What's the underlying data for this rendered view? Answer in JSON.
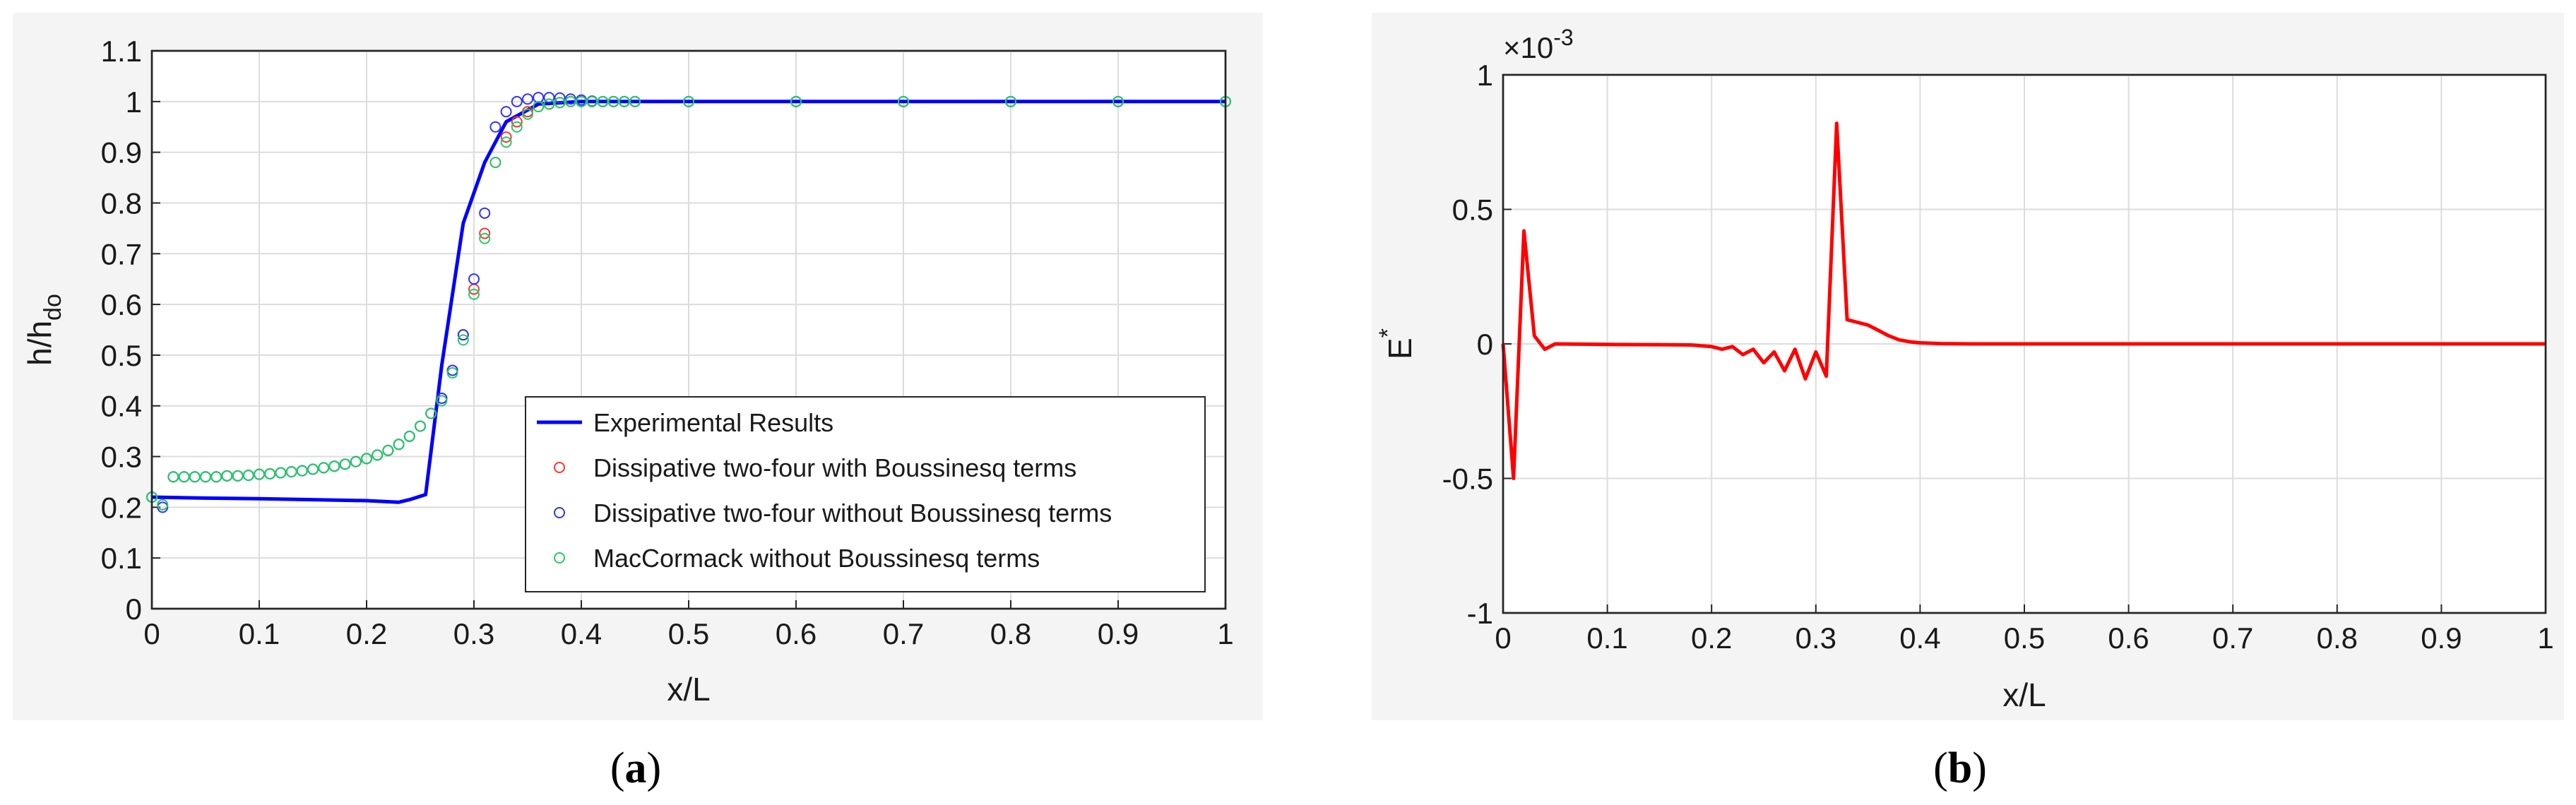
{
  "chart_data": [
    {
      "type": "line",
      "panel_label": "a",
      "xlabel": "x/L",
      "ylabel": "h/h",
      "ylabel_sub": "do",
      "xlim": [
        0,
        1
      ],
      "ylim": [
        0,
        1.1
      ],
      "x_ticks": [
        "0",
        "0.1",
        "0.2",
        "0.3",
        "0.4",
        "0.5",
        "0.6",
        "0.7",
        "0.8",
        "0.9",
        "1"
      ],
      "y_ticks": [
        "0",
        "0.1",
        "0.2",
        "0.3",
        "0.4",
        "0.5",
        "0.6",
        "0.7",
        "0.8",
        "0.9",
        "1",
        "1.1"
      ],
      "grid": true,
      "legend_position": "lower-right",
      "series": [
        {
          "name": "Experimental Results",
          "style": "line",
          "color": "#0000ff",
          "x": [
            0,
            0.05,
            0.1,
            0.15,
            0.2,
            0.23,
            0.24,
            0.255,
            0.27,
            0.29,
            0.31,
            0.33,
            0.36,
            0.4,
            0.45,
            0.5,
            0.6,
            0.7,
            0.8,
            0.9,
            1.0
          ],
          "y": [
            0.22,
            0.218,
            0.217,
            0.215,
            0.213,
            0.21,
            0.215,
            0.225,
            0.48,
            0.76,
            0.88,
            0.96,
            0.995,
            1.0,
            1.0,
            1.0,
            1.0,
            1.0,
            1.0,
            1.0,
            1.0
          ]
        },
        {
          "name": "Dissipative two-four with Boussinesq terms",
          "style": "marker",
          "color": "#ff3333",
          "x": [
            0.0,
            0.01,
            0.02,
            0.03,
            0.04,
            0.05,
            0.06,
            0.07,
            0.08,
            0.09,
            0.1,
            0.11,
            0.12,
            0.13,
            0.14,
            0.15,
            0.16,
            0.17,
            0.18,
            0.19,
            0.2,
            0.21,
            0.22,
            0.23,
            0.24,
            0.25,
            0.26,
            0.27,
            0.28,
            0.29,
            0.3,
            0.31,
            0.32,
            0.33,
            0.34,
            0.35,
            0.36,
            0.37,
            0.38,
            0.39,
            0.4,
            0.41,
            0.42,
            0.43,
            0.44,
            0.45,
            0.5,
            0.6,
            0.7,
            0.8,
            0.9,
            1.0
          ],
          "y": [
            0.22,
            0.205,
            0.26,
            0.26,
            0.26,
            0.26,
            0.26,
            0.262,
            0.262,
            0.263,
            0.265,
            0.266,
            0.268,
            0.27,
            0.272,
            0.275,
            0.278,
            0.281,
            0.285,
            0.29,
            0.296,
            0.303,
            0.312,
            0.324,
            0.34,
            0.36,
            0.385,
            0.415,
            0.47,
            0.54,
            0.63,
            0.74,
            0.88,
            0.93,
            0.96,
            0.98,
            0.99,
            0.995,
            0.998,
            1.0,
            1.0,
            1.0,
            1.0,
            1.0,
            1.0,
            1.0,
            1.0,
            1.0,
            1.0,
            1.0,
            1.0,
            1.0
          ]
        },
        {
          "name": "Dissipative two-four without Boussinesq terms",
          "style": "marker",
          "color": "#3333ff",
          "x": [
            0.0,
            0.01,
            0.02,
            0.03,
            0.04,
            0.05,
            0.06,
            0.07,
            0.08,
            0.09,
            0.1,
            0.11,
            0.12,
            0.13,
            0.14,
            0.15,
            0.16,
            0.17,
            0.18,
            0.19,
            0.2,
            0.21,
            0.22,
            0.23,
            0.24,
            0.25,
            0.26,
            0.27,
            0.28,
            0.29,
            0.3,
            0.31,
            0.32,
            0.33,
            0.34,
            0.35,
            0.36,
            0.37,
            0.38,
            0.39,
            0.4,
            0.41,
            0.42,
            0.43,
            0.44,
            0.45,
            0.5,
            0.6,
            0.7,
            0.8,
            0.9,
            1.0
          ],
          "y": [
            0.22,
            0.2,
            0.26,
            0.26,
            0.26,
            0.26,
            0.26,
            0.262,
            0.262,
            0.263,
            0.265,
            0.266,
            0.268,
            0.27,
            0.272,
            0.275,
            0.278,
            0.281,
            0.285,
            0.29,
            0.296,
            0.303,
            0.312,
            0.324,
            0.34,
            0.36,
            0.385,
            0.415,
            0.47,
            0.54,
            0.65,
            0.78,
            0.95,
            0.98,
            1.0,
            1.005,
            1.008,
            1.008,
            1.007,
            1.005,
            1.003,
            1.001,
            1.0,
            1.0,
            1.0,
            1.0,
            1.0,
            1.0,
            1.0,
            1.0,
            1.0,
            1.0
          ]
        },
        {
          "name": "MacCormack without Boussinesq terms",
          "style": "marker",
          "color": "#22cc66",
          "x": [
            0.0,
            0.01,
            0.02,
            0.03,
            0.04,
            0.05,
            0.06,
            0.07,
            0.08,
            0.09,
            0.1,
            0.11,
            0.12,
            0.13,
            0.14,
            0.15,
            0.16,
            0.17,
            0.18,
            0.19,
            0.2,
            0.21,
            0.22,
            0.23,
            0.24,
            0.25,
            0.26,
            0.27,
            0.28,
            0.29,
            0.3,
            0.31,
            0.32,
            0.33,
            0.34,
            0.35,
            0.36,
            0.37,
            0.38,
            0.39,
            0.4,
            0.41,
            0.42,
            0.43,
            0.44,
            0.45,
            0.5,
            0.6,
            0.7,
            0.8,
            0.9,
            1.0
          ],
          "y": [
            0.22,
            0.205,
            0.26,
            0.26,
            0.26,
            0.26,
            0.26,
            0.262,
            0.262,
            0.263,
            0.265,
            0.266,
            0.268,
            0.27,
            0.272,
            0.275,
            0.278,
            0.281,
            0.285,
            0.29,
            0.296,
            0.303,
            0.312,
            0.324,
            0.34,
            0.36,
            0.385,
            0.41,
            0.465,
            0.53,
            0.62,
            0.73,
            0.88,
            0.92,
            0.95,
            0.975,
            0.99,
            0.995,
            0.998,
            1.0,
            1.0,
            1.0,
            1.0,
            1.0,
            1.0,
            1.0,
            1.0,
            1.0,
            1.0,
            1.0,
            1.0,
            1.0
          ]
        }
      ]
    },
    {
      "type": "line",
      "panel_label": "b",
      "xlabel": "x/L",
      "ylabel": "E",
      "ylabel_sup": "*",
      "scale_label": "×10",
      "scale_exp": "-3",
      "xlim": [
        0,
        1
      ],
      "ylim": [
        -1,
        1
      ],
      "x_ticks": [
        "0",
        "0.1",
        "0.2",
        "0.3",
        "0.4",
        "0.5",
        "0.6",
        "0.7",
        "0.8",
        "0.9",
        "1"
      ],
      "y_ticks": [
        "-1",
        "-0.5",
        "0",
        "0.5",
        "1"
      ],
      "grid": true,
      "series": [
        {
          "style": "line",
          "color": "#ff0000",
          "x": [
            0,
            0.01,
            0.02,
            0.03,
            0.04,
            0.05,
            0.1,
            0.15,
            0.18,
            0.2,
            0.21,
            0.22,
            0.23,
            0.24,
            0.25,
            0.26,
            0.27,
            0.28,
            0.29,
            0.3,
            0.31,
            0.32,
            0.33,
            0.34,
            0.35,
            0.36,
            0.37,
            0.38,
            0.39,
            0.4,
            0.42,
            0.45,
            0.5,
            0.6,
            0.7,
            0.8,
            0.9,
            1.0
          ],
          "y": [
            0,
            -0.5,
            0.42,
            0.03,
            -0.02,
            0.0,
            -0.002,
            -0.003,
            -0.004,
            -0.01,
            -0.02,
            -0.01,
            -0.04,
            -0.02,
            -0.07,
            -0.03,
            -0.1,
            -0.02,
            -0.13,
            -0.03,
            -0.12,
            0.82,
            0.09,
            0.08,
            0.07,
            0.05,
            0.03,
            0.015,
            0.008,
            0.004,
            0.001,
            0,
            0,
            0,
            0,
            0,
            0,
            0
          ]
        }
      ]
    }
  ]
}
